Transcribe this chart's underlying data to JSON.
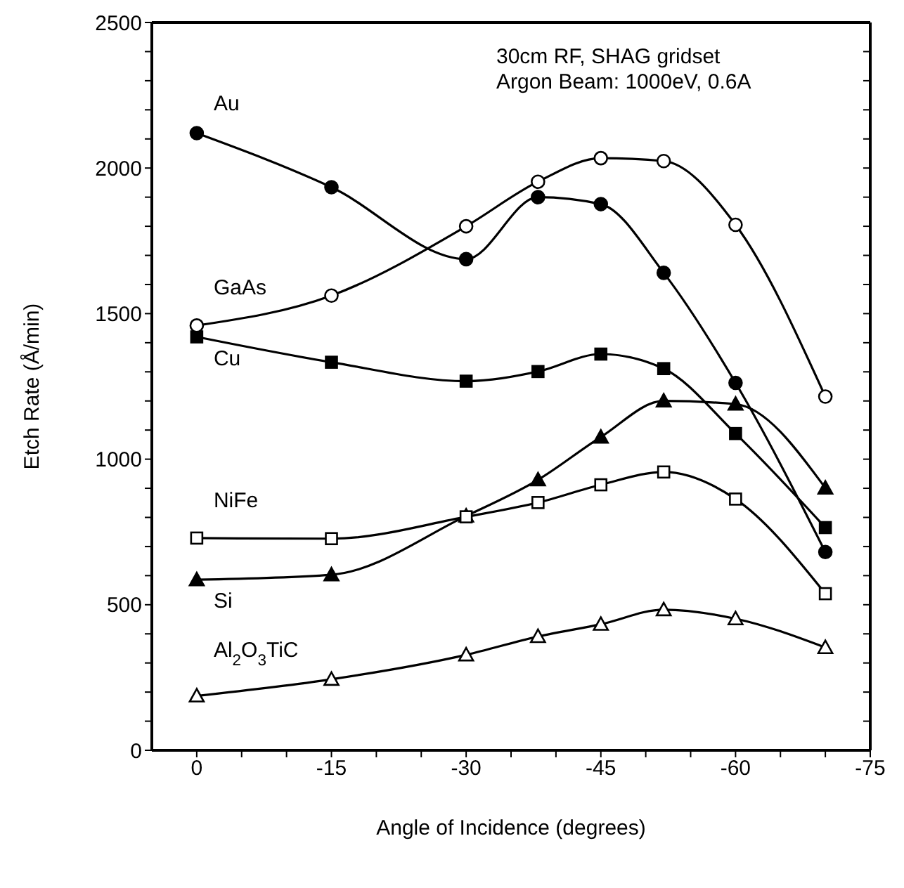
{
  "chart_data": {
    "type": "line",
    "xlabel": "Angle of Incidence (degrees)",
    "ylabel": "Etch Rate (Å/min)",
    "annotations": [
      "30cm RF, SHAG gridset",
      "Argon Beam: 1000eV, 0.6A"
    ],
    "x": [
      0,
      -15,
      -30,
      -38,
      -45,
      -52,
      -60,
      -70
    ],
    "series": [
      {
        "name": "Au",
        "color": "#000000",
        "marker": "circle",
        "values": [
          2120,
          1934,
          1687,
          1900,
          1876,
          1640,
          1262,
          681
        ]
      },
      {
        "name": "GaAs",
        "color": "#000000",
        "marker": "circle-open",
        "values": [
          1459,
          1562,
          1800,
          1953,
          2034,
          2024,
          1805,
          1215
        ]
      },
      {
        "name": "Cu",
        "color": "#000000",
        "marker": "square",
        "values": [
          1420,
          1333,
          1268,
          1301,
          1361,
          1311,
          1088,
          765
        ]
      },
      {
        "name": "NiFe",
        "color": "#000000",
        "marker": "square-open",
        "values": [
          729,
          727,
          802,
          851,
          912,
          956,
          863,
          538
        ]
      },
      {
        "name": "Si",
        "color": "#000000",
        "marker": "triangle",
        "values": [
          586,
          603,
          805,
          929,
          1076,
          1200,
          1189,
          901
        ]
      },
      {
        "name": "Al$_{2}$O$_{3}$TiC",
        "color": "#000000",
        "marker": "triangle-open",
        "values": [
          187,
          244,
          328,
          391,
          433,
          483,
          452,
          353
        ]
      }
    ],
    "xlim": [
      5,
      -75
    ],
    "xticks": [
      0,
      {
        "value": -5,
        "label": null
      },
      {
        "value": -10,
        "label": null
      },
      -15,
      {
        "value": -20,
        "label": null
      },
      {
        "value": -25,
        "label": null
      },
      -30,
      {
        "value": -35,
        "label": null
      },
      {
        "value": -40,
        "label": null
      },
      -45,
      {
        "value": -50,
        "label": null
      },
      {
        "value": -55,
        "label": null
      },
      -60,
      {
        "value": -65,
        "label": null
      },
      {
        "value": -70,
        "label": null
      },
      -75
    ],
    "ylim": [
      0,
      2500
    ],
    "yticks": [
      0,
      {
        "value": 100,
        "label": null
      },
      {
        "value": 200,
        "label": null
      },
      {
        "value": 300,
        "label": null
      },
      {
        "value": 400,
        "label": null
      },
      500,
      {
        "value": 600,
        "label": null
      },
      {
        "value": 700,
        "label": null
      },
      {
        "value": 800,
        "label": null
      },
      {
        "value": 900,
        "label": null
      },
      1000,
      {
        "value": 1100,
        "label": null
      },
      {
        "value": 1200,
        "label": null
      },
      {
        "value": 1300,
        "label": null
      },
      {
        "value": 1400,
        "label": null
      },
      1500,
      {
        "value": 1600,
        "label": null
      },
      {
        "value": 1700,
        "label": null
      },
      {
        "value": 1800,
        "label": null
      },
      {
        "value": 1900,
        "label": null
      },
      2000,
      {
        "value": 2100,
        "label": null
      },
      {
        "value": 2200,
        "label": null
      },
      {
        "value": 2300,
        "label": null
      },
      {
        "value": 2400,
        "label": null
      },
      2500
    ],
    "line_style": "solid"
  }
}
